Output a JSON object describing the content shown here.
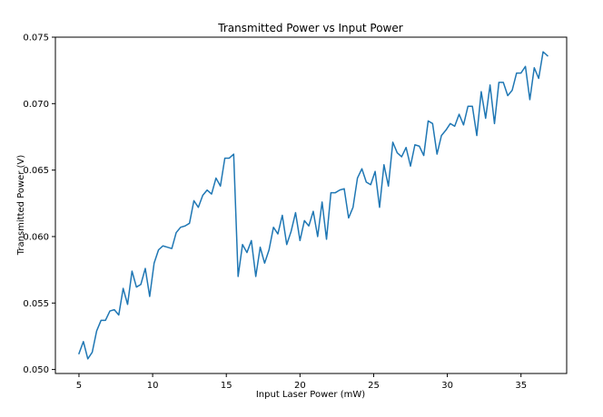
{
  "chart_data": {
    "type": "line",
    "title": "Transmitted Power vs Input Power",
    "xlabel": "Input Laser Power (mW)",
    "ylabel": "Transmitted Power (V)",
    "xlim": [
      3.4,
      38.1
    ],
    "ylim": [
      0.0497,
      0.075
    ],
    "grid": false,
    "line_color": "#1f77b4",
    "xticks": [
      {
        "value": 5,
        "label": "5"
      },
      {
        "value": 10,
        "label": "10"
      },
      {
        "value": 15,
        "label": "15"
      },
      {
        "value": 20,
        "label": "20"
      },
      {
        "value": 25,
        "label": "25"
      },
      {
        "value": 30,
        "label": "30"
      },
      {
        "value": 35,
        "label": "35"
      }
    ],
    "yticks": [
      {
        "value": 0.05,
        "label": "0.050"
      },
      {
        "value": 0.055,
        "label": "0.055"
      },
      {
        "value": 0.06,
        "label": "0.060"
      },
      {
        "value": 0.065,
        "label": "0.065"
      },
      {
        "value": 0.07,
        "label": "0.070"
      },
      {
        "value": 0.075,
        "label": "0.075"
      }
    ],
    "series": [
      {
        "points": [
          [
            5.0,
            0.0512
          ],
          [
            5.3,
            0.0521
          ],
          [
            5.6,
            0.0508
          ],
          [
            5.9,
            0.0513
          ],
          [
            6.2,
            0.0529
          ],
          [
            6.5,
            0.0537
          ],
          [
            6.8,
            0.0537
          ],
          [
            7.1,
            0.0544
          ],
          [
            7.4,
            0.0545
          ],
          [
            7.7,
            0.0541
          ],
          [
            8.0,
            0.0561
          ],
          [
            8.3,
            0.0549
          ],
          [
            8.6,
            0.0574
          ],
          [
            8.9,
            0.0562
          ],
          [
            9.2,
            0.0564
          ],
          [
            9.5,
            0.0576
          ],
          [
            9.8,
            0.0555
          ],
          [
            10.1,
            0.058
          ],
          [
            10.4,
            0.059
          ],
          [
            10.7,
            0.0593
          ],
          [
            11.0,
            0.0592
          ],
          [
            11.3,
            0.0591
          ],
          [
            11.6,
            0.0603
          ],
          [
            11.9,
            0.0607
          ],
          [
            12.2,
            0.0608
          ],
          [
            12.5,
            0.061
          ],
          [
            12.8,
            0.0627
          ],
          [
            13.1,
            0.0622
          ],
          [
            13.4,
            0.0631
          ],
          [
            13.7,
            0.0635
          ],
          [
            14.0,
            0.0632
          ],
          [
            14.3,
            0.0644
          ],
          [
            14.6,
            0.0638
          ],
          [
            14.9,
            0.0659
          ],
          [
            15.2,
            0.0659
          ],
          [
            15.5,
            0.0662
          ],
          [
            15.8,
            0.057
          ],
          [
            16.1,
            0.0594
          ],
          [
            16.4,
            0.0588
          ],
          [
            16.7,
            0.0597
          ],
          [
            17.0,
            0.057
          ],
          [
            17.3,
            0.0592
          ],
          [
            17.6,
            0.058
          ],
          [
            17.9,
            0.059
          ],
          [
            18.2,
            0.0607
          ],
          [
            18.5,
            0.0602
          ],
          [
            18.8,
            0.0616
          ],
          [
            19.1,
            0.0594
          ],
          [
            19.4,
            0.0604
          ],
          [
            19.7,
            0.0618
          ],
          [
            20.0,
            0.0597
          ],
          [
            20.3,
            0.0612
          ],
          [
            20.6,
            0.0608
          ],
          [
            20.9,
            0.0619
          ],
          [
            21.2,
            0.06
          ],
          [
            21.5,
            0.0626
          ],
          [
            21.8,
            0.0598
          ],
          [
            22.1,
            0.0633
          ],
          [
            22.4,
            0.0633
          ],
          [
            22.7,
            0.0635
          ],
          [
            23.0,
            0.0636
          ],
          [
            23.3,
            0.0614
          ],
          [
            23.6,
            0.0622
          ],
          [
            23.9,
            0.0644
          ],
          [
            24.2,
            0.0651
          ],
          [
            24.5,
            0.0641
          ],
          [
            24.8,
            0.0639
          ],
          [
            25.1,
            0.0649
          ],
          [
            25.4,
            0.0622
          ],
          [
            25.7,
            0.0654
          ],
          [
            26.0,
            0.0638
          ],
          [
            26.3,
            0.0671
          ],
          [
            26.6,
            0.0663
          ],
          [
            26.9,
            0.066
          ],
          [
            27.2,
            0.0667
          ],
          [
            27.5,
            0.0653
          ],
          [
            27.8,
            0.0669
          ],
          [
            28.1,
            0.0668
          ],
          [
            28.4,
            0.0661
          ],
          [
            28.7,
            0.0687
          ],
          [
            29.0,
            0.0685
          ],
          [
            29.3,
            0.0662
          ],
          [
            29.6,
            0.0676
          ],
          [
            29.9,
            0.068
          ],
          [
            30.2,
            0.0685
          ],
          [
            30.5,
            0.0683
          ],
          [
            30.8,
            0.0692
          ],
          [
            31.1,
            0.0684
          ],
          [
            31.4,
            0.0698
          ],
          [
            31.7,
            0.0698
          ],
          [
            32.0,
            0.0676
          ],
          [
            32.3,
            0.0709
          ],
          [
            32.6,
            0.0689
          ],
          [
            32.9,
            0.0714
          ],
          [
            33.2,
            0.0685
          ],
          [
            33.5,
            0.0716
          ],
          [
            33.8,
            0.0716
          ],
          [
            34.1,
            0.0706
          ],
          [
            34.4,
            0.071
          ],
          [
            34.7,
            0.0723
          ],
          [
            35.0,
            0.0723
          ],
          [
            35.3,
            0.0728
          ],
          [
            35.6,
            0.0703
          ],
          [
            35.9,
            0.0727
          ],
          [
            36.2,
            0.0719
          ],
          [
            36.5,
            0.0739
          ],
          [
            36.8,
            0.0736
          ]
        ]
      }
    ]
  }
}
